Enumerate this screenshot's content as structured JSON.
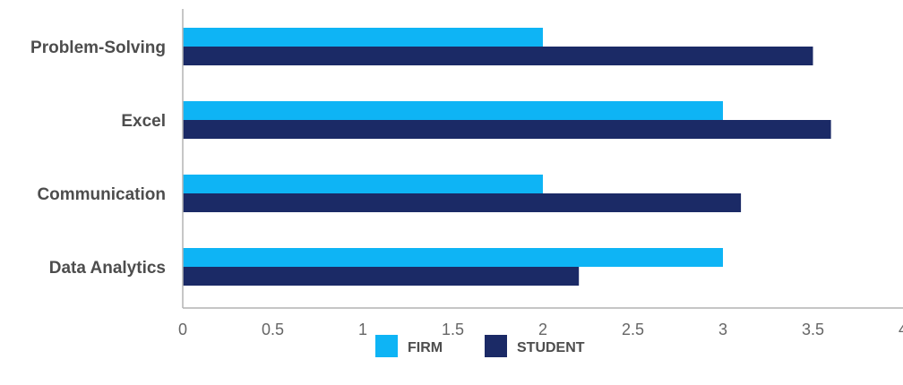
{
  "chart_data": {
    "type": "bar",
    "orientation": "horizontal",
    "categories": [
      "Problem-Solving",
      "Excel",
      "Communication",
      "Data Analytics"
    ],
    "series": [
      {
        "name": "FIRM",
        "color": "#0eb4f5",
        "values": [
          2.0,
          3.0,
          2.0,
          3.0
        ]
      },
      {
        "name": "STUDENT",
        "color": "#1b2a66",
        "values": [
          3.5,
          3.6,
          3.1,
          2.2
        ]
      }
    ],
    "x_ticks": [
      "0",
      "0.5",
      "1",
      "1.5",
      "2",
      "2.5",
      "3",
      "3.5",
      "4"
    ],
    "xlim": [
      0,
      4
    ],
    "xlabel": "",
    "ylabel": "",
    "title": "",
    "grid": false,
    "legend_position": "bottom-center"
  }
}
